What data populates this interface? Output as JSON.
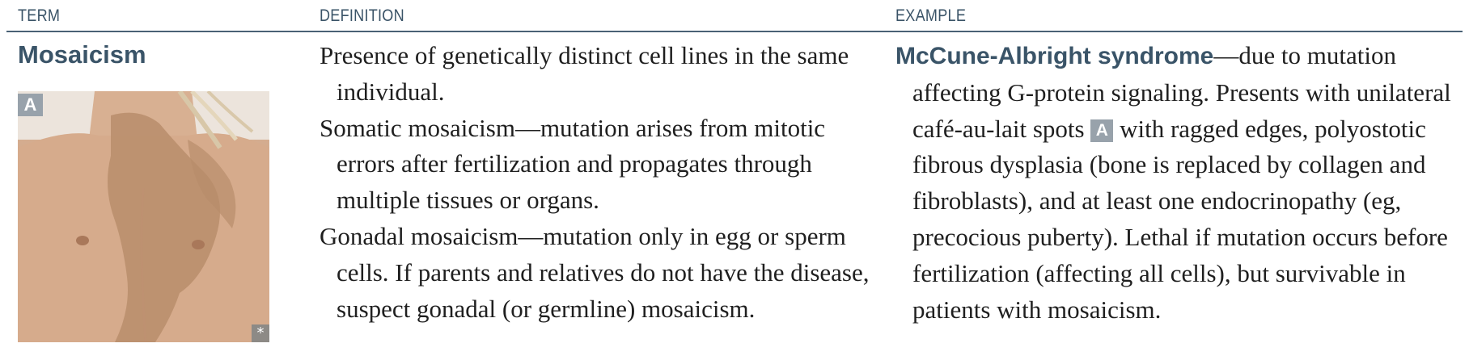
{
  "headers": {
    "term": "TERM",
    "definition": "DEFINITION",
    "example": "EXAMPLE"
  },
  "term": "Mosaicism",
  "image": {
    "badge": "A",
    "corner_mark": "*",
    "description_icon": "chest-skin-photo"
  },
  "definition": {
    "p1": "Presence of genetically distinct cell lines in the same individual.",
    "p2": "Somatic mosaicism—mutation arises from mitotic errors after fertilization and propagates through multiple tissues or organs.",
    "p3": "Gonadal mosaicism—mutation only in egg or sperm cells. If parents and relatives do not have the disease, suspect gonadal (or germline) mosaicism."
  },
  "example": {
    "term": "McCune-Albright syndrome",
    "text_before_badge": "—due to mutation affecting G-protein signaling. Presents with unilateral café-au-lait spots ",
    "badge": "A",
    "text_after_badge": " with ragged edges, polyostotic fibrous dysplasia (bone is replaced by collagen and fibroblasts), and at least one endocrinopathy (eg, precocious puberty). Lethal if mutation occurs before fertilization (affecting all cells), but survivable in patients with mosaicism."
  },
  "colors": {
    "accent": "#3a5468",
    "badge": "#98a2ab",
    "rule": "#4a6275"
  }
}
